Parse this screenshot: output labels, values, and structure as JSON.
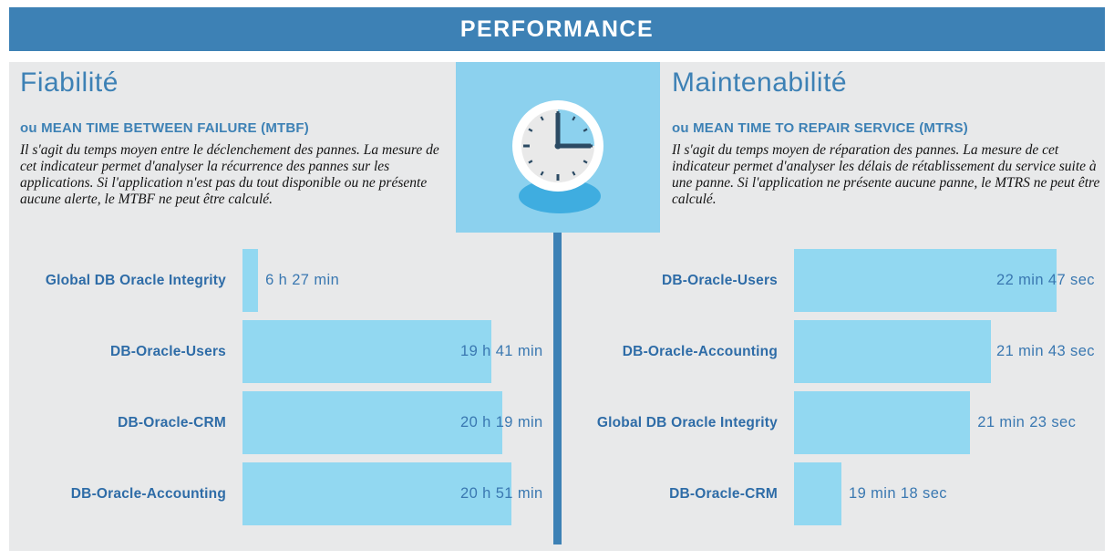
{
  "header": {
    "title": "PERFORMANCE"
  },
  "colors": {
    "primary_blue": "#3D81B5",
    "panel_gray": "#E8E9EA",
    "bar_light_blue": "#92D8F1",
    "tile_light_blue": "#8CD1EE",
    "clock_shadow_blue": "#3FADE0",
    "category_label_blue": "#2E6CA7",
    "value_label_blue": "#3A78B1",
    "clock_hands_navy": "#2B4A63",
    "clock_face_gray": "#E9E9E9"
  },
  "center_icon": {
    "name": "clock-icon",
    "depicts": "clock showing 3:00 with quarter wedge highlighted"
  },
  "sections": {
    "left": {
      "title": "Fiabilité",
      "subtitle": "ou MEAN TIME BETWEEN FAILURE (MTBF)",
      "description": "Il s'agit du temps moyen entre le déclenchement des pannes. La mesure de cet indicateur permet d'analyser la récurrence des pannes sur les applications. Si l'application n'est pas du tout disponible ou ne présente aucune alerte, le MTBF ne peut être calculé."
    },
    "right": {
      "title": "Maintenabilité",
      "subtitle": "ou MEAN TIME TO REPAIR SERVICE (MTRS)",
      "description": "Il s'agit du temps moyen de réparation des pannes. La mesure de cet indicateur permet d'analyser les délais de rétablissement du service suite à une panne. Si l'application ne présente aucune panne, le MTRS ne peut être calculé."
    }
  },
  "chart_data": [
    {
      "type": "bar",
      "orientation": "horizontal",
      "section": "Fiabilité (MTBF)",
      "categories": [
        "Global DB Oracle Integrity",
        "DB-Oracle-Users",
        "DB-Oracle-CRM",
        "DB-Oracle-Accounting"
      ],
      "values": [
        387,
        1181,
        1219,
        1251
      ],
      "unit": "minutes",
      "value_labels": [
        "6 h 27 min",
        "19 h 41 min",
        "20 h 19 min",
        "20 h 51 min"
      ],
      "xlim": [
        334,
        1359
      ],
      "axis_visible": false,
      "grid": false,
      "legend": false,
      "data_labels": "outside-end, clamped at chart right edge"
    },
    {
      "type": "bar",
      "orientation": "horizontal",
      "section": "Maintenabilité (MTRS)",
      "categories": [
        "DB-Oracle-Users",
        "DB-Oracle-Accounting",
        "Global DB Oracle Integrity",
        "DB-Oracle-CRM"
      ],
      "values": [
        1367,
        1303,
        1283,
        1158
      ],
      "unit": "seconds",
      "value_labels": [
        "22 min 47 sec",
        "21 min 43 sec",
        "21 min 23 sec",
        "19 min 18 sec"
      ],
      "xlim": [
        1112,
        1404
      ],
      "axis_visible": false,
      "grid": false,
      "legend": false,
      "data_labels": "outside-end, clamped at chart right edge"
    }
  ]
}
